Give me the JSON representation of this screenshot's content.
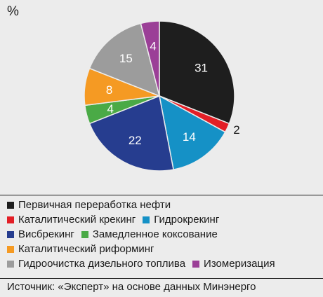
{
  "unit_label": "%",
  "chart_data": {
    "type": "pie",
    "categories": [
      "Первичная переработка нефти",
      "Каталитический крекинг",
      "Гидрокрекинг",
      "Висбрекинг",
      "Замедленное коксование",
      "Каталитический риформинг",
      "Гидроочистка дизельного топлива",
      "Изомеризация"
    ],
    "slice_order": [
      0,
      1,
      2,
      3,
      4,
      5,
      6,
      7
    ],
    "values": [
      31,
      2,
      14,
      22,
      4,
      8,
      15,
      4
    ],
    "colors": [
      "#1e1e1e",
      "#e31e26",
      "#1591c6",
      "#263d8f",
      "#4aaa46",
      "#f59a23",
      "#9c9c9c",
      "#9b3f97"
    ],
    "start_angle_deg": 0,
    "direction": "clockwise",
    "legend_placement": "bottom"
  },
  "legend": [
    [
      {
        "label": "Первичная переработка нефти",
        "color": "#1e1e1e"
      }
    ],
    [
      {
        "label": "Каталитический крекинг",
        "color": "#e31e26"
      },
      {
        "label": "Гидрокрекинг",
        "color": "#1591c6"
      }
    ],
    [
      {
        "label": "Висбрекинг",
        "color": "#263d8f"
      },
      {
        "label": "Замедленное коксование",
        "color": "#4aaa46"
      }
    ],
    [
      {
        "label": "Каталитический риформинг",
        "color": "#f59a23"
      }
    ],
    [
      {
        "label": "Гидроочистка дизельного топлива",
        "color": "#9c9c9c"
      },
      {
        "label": "Изомеризация",
        "color": "#9b3f97"
      }
    ]
  ],
  "source": "Источник: «Эксперт» на основе данных Минэнерго"
}
